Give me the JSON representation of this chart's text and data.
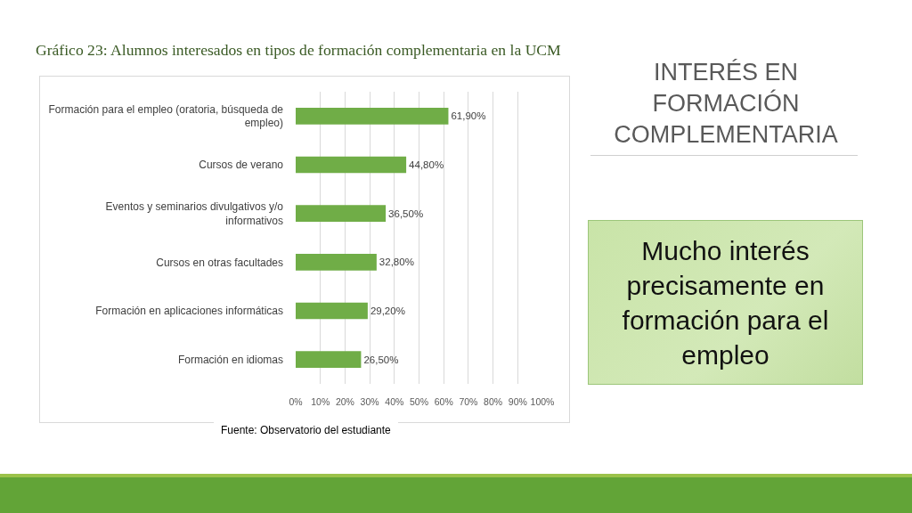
{
  "chart_data": {
    "type": "bar",
    "orientation": "horizontal",
    "title": "Gráfico 23: Alumnos interesados en tipos de formación complementaria en la UCM",
    "categories": [
      "Formación para el empleo (oratoria, búsqueda de empleo)",
      "Cursos de verano",
      "Eventos y seminarios divulgativos y/o informativos",
      "Cursos en otras facultades",
      "Formación en aplicaciones informáticas",
      "Formación en idiomas"
    ],
    "values": [
      61.9,
      44.8,
      36.5,
      32.8,
      29.2,
      26.5
    ],
    "value_labels": [
      "61,90%",
      "44,80%",
      "36,50%",
      "32,80%",
      "29,20%",
      "26,50%"
    ],
    "color": "#70ad47",
    "xlim": [
      0,
      100
    ],
    "xticks": [
      {
        "value": 0,
        "label": "0%"
      },
      {
        "value": 10,
        "label": "10%"
      },
      {
        "value": 20,
        "label": "20%"
      },
      {
        "value": 30,
        "label": "30%"
      },
      {
        "value": 40,
        "label": "40%"
      },
      {
        "value": 50,
        "label": "50%"
      },
      {
        "value": 60,
        "label": "60%"
      },
      {
        "value": 70,
        "label": "70%"
      },
      {
        "value": 80,
        "label": "80%"
      },
      {
        "value": 90,
        "label": "90%"
      },
      {
        "value": 100,
        "label": "100%"
      }
    ],
    "grid": "x",
    "annotations": [
      "INTERÉS EN FORMACIÓN COMPLEMENTARIA",
      "Mucho interés precisamente en formación para el empleo",
      "Fuente: Observatorio del estudiante"
    ]
  }
}
